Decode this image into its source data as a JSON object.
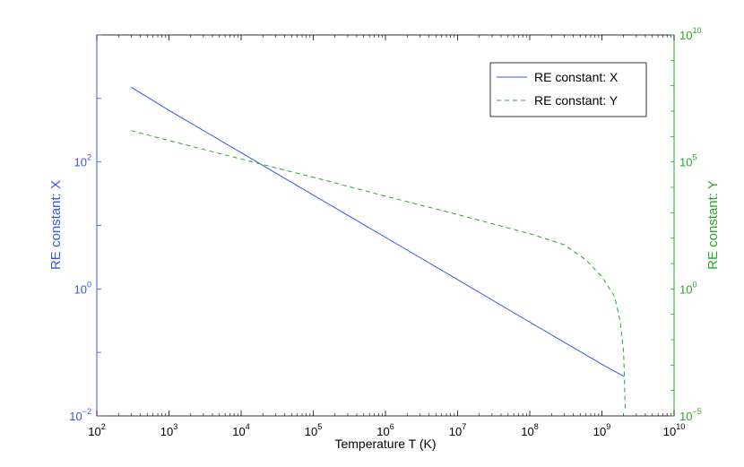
{
  "chart_data": {
    "type": "line",
    "xlabel": "Temperature T (K)",
    "ylabel_left": "RE constant: X",
    "ylabel_right": "RE constant: Y",
    "x_scale": "log",
    "y_scale": "log",
    "xlim": [
      100,
      10000000000
    ],
    "ylim_left": [
      0.01,
      10000
    ],
    "ylim_right": [
      1e-05,
      10000000000
    ],
    "grid": false,
    "legend_placement": "top-right",
    "x_ticks": [
      {
        "base": "10",
        "exp": "2",
        "value": 100
      },
      {
        "base": "10",
        "exp": "3",
        "value": 1000
      },
      {
        "base": "10",
        "exp": "4",
        "value": 10000
      },
      {
        "base": "10",
        "exp": "5",
        "value": 100000
      },
      {
        "base": "10",
        "exp": "6",
        "value": 1000000
      },
      {
        "base": "10",
        "exp": "7",
        "value": 10000000
      },
      {
        "base": "10",
        "exp": "8",
        "value": 100000000
      },
      {
        "base": "10",
        "exp": "9",
        "value": 1000000000
      },
      {
        "base": "10",
        "exp": "10",
        "value": 10000000000
      }
    ],
    "y_left_ticks": [
      {
        "base": "10",
        "exp": "−2",
        "value": 0.01
      },
      {
        "base": "10",
        "exp": "0",
        "value": 1
      },
      {
        "base": "10",
        "exp": "2",
        "value": 100
      }
    ],
    "y_right_ticks": [
      {
        "base": "10",
        "exp": "−5",
        "value": 1e-05
      },
      {
        "base": "10",
        "exp": "0",
        "value": 1
      },
      {
        "base": "10",
        "exp": "5",
        "value": 100000
      },
      {
        "base": "10",
        "exp": "10",
        "value": 10000000000
      }
    ],
    "series": [
      {
        "name": "RE constant: X",
        "axis": "left",
        "color": "#3355ee",
        "dash": "solid",
        "x": [
          300,
          1000,
          10000,
          100000,
          1000000,
          10000000,
          100000000,
          1000000000,
          2000000000
        ],
        "y": [
          1500,
          650,
          140,
          30,
          6.5,
          1.4,
          0.3,
          0.065,
          0.042
        ]
      },
      {
        "name": "RE constant: Y",
        "axis": "right",
        "color": "#22aa22",
        "dash": "dashed",
        "x": [
          300,
          1000,
          10000,
          100000,
          1000000,
          10000000,
          100000000,
          300000000,
          600000000,
          1000000000,
          1500000000,
          1800000000,
          2000000000,
          2050000000,
          2080000000,
          2100000000
        ],
        "y": [
          1700000,
          700000,
          130000,
          25000,
          4500,
          850,
          150,
          55,
          14,
          3,
          0.5,
          0.05,
          0.003,
          0.0003,
          5e-05,
          2e-05
        ]
      }
    ]
  }
}
